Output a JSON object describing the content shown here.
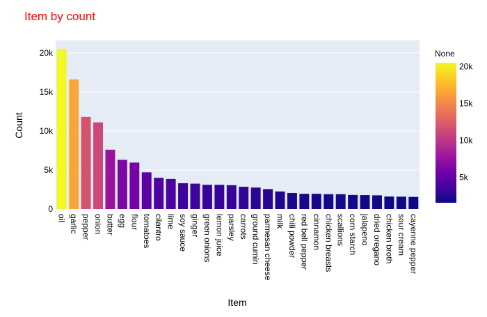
{
  "chart_data": {
    "type": "bar",
    "title": "Item by count",
    "xlabel": "Item",
    "ylabel": "Count",
    "ylim": [
      0,
      21600
    ],
    "yticks": [
      0,
      5000,
      10000,
      15000,
      20000
    ],
    "ytick_labels": [
      "0",
      "5k",
      "10k",
      "15k",
      "20k"
    ],
    "grid": true,
    "categories": [
      "oil",
      "garlic",
      "pepper",
      "onion",
      "butter",
      "egg",
      "flour",
      "tomatoes",
      "cilantro",
      "lime",
      "soy sauce",
      "ginger",
      "green onions",
      "lemon juice",
      "parsley",
      "carrots",
      "ground cumin",
      "parmesan cheese",
      "milk",
      "chili powder",
      "red bell pepper",
      "cinnamon",
      "chicken breasts",
      "scallions",
      "corn starch",
      "jalapeno",
      "dried oregano",
      "chicken broth",
      "sour cream",
      "cayenne pepper"
    ],
    "values": [
      20500,
      16600,
      11800,
      11100,
      7600,
      6300,
      5950,
      4700,
      4000,
      3850,
      3300,
      3250,
      3100,
      3100,
      3050,
      2850,
      2750,
      2550,
      2250,
      2050,
      1950,
      1950,
      1900,
      1900,
      1800,
      1780,
      1750,
      1600,
      1580,
      1550
    ],
    "colorbar": {
      "title": "None",
      "range": [
        1550,
        20500
      ],
      "ticks": [
        5000,
        10000,
        15000,
        20000
      ],
      "tick_labels": [
        "5k",
        "10k",
        "15k",
        "20k"
      ]
    },
    "colors": {
      "title": "#ff0000",
      "plot_bg": "#e5ecf6",
      "grid": "#ffffff",
      "text": "#2a3f5f",
      "scale": [
        "#0d0887",
        "#46039f",
        "#7201a8",
        "#9c179e",
        "#bd3786",
        "#d8576b",
        "#ed7953",
        "#fb9f3a",
        "#fdca26",
        "#f0f921"
      ]
    }
  }
}
